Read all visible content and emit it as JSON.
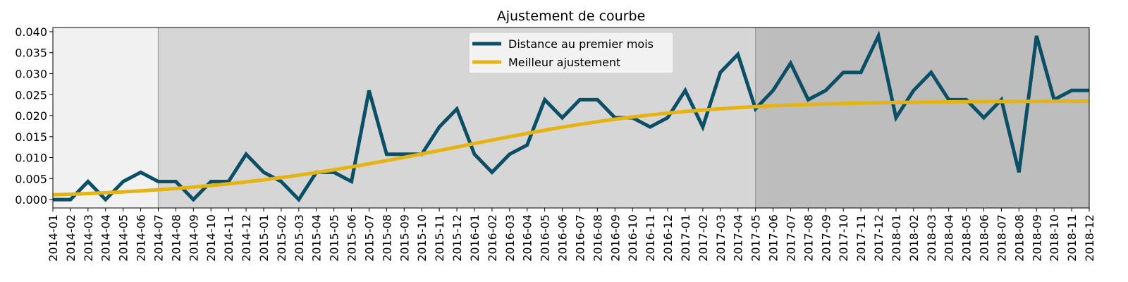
{
  "chart_data": {
    "type": "line",
    "title": "Ajustement de courbe",
    "xlabel": "",
    "ylabel": "",
    "ylim": [
      -0.002,
      0.041
    ],
    "yticks": [
      "0.000",
      "0.005",
      "0.010",
      "0.015",
      "0.020",
      "0.025",
      "0.030",
      "0.035",
      "0.040"
    ],
    "ytick_values": [
      0,
      0.005,
      0.01,
      0.015,
      0.02,
      0.025,
      0.03,
      0.035,
      0.04
    ],
    "categories": [
      "2014-01",
      "2014-02",
      "2014-03",
      "2014-04",
      "2014-05",
      "2014-06",
      "2014-07",
      "2014-08",
      "2014-09",
      "2014-10",
      "2014-11",
      "2014-12",
      "2015-01",
      "2015-02",
      "2015-03",
      "2015-04",
      "2015-05",
      "2015-06",
      "2015-07",
      "2015-08",
      "2015-09",
      "2015-10",
      "2015-11",
      "2015-12",
      "2016-01",
      "2016-02",
      "2016-03",
      "2016-04",
      "2016-05",
      "2016-06",
      "2016-07",
      "2016-08",
      "2016-09",
      "2016-10",
      "2016-11",
      "2016-12",
      "2017-01",
      "2017-02",
      "2017-03",
      "2017-04",
      "2017-05",
      "2017-06",
      "2017-07",
      "2017-08",
      "2017-09",
      "2017-10",
      "2017-11",
      "2017-12",
      "2018-01",
      "2018-02",
      "2018-03",
      "2018-04",
      "2018-05",
      "2018-06",
      "2018-07",
      "2018-08",
      "2018-09",
      "2018-10",
      "2018-11",
      "2018-12"
    ],
    "series": [
      {
        "name": "Distance au premier mois",
        "color": "#0b4f66",
        "values": [
          0.0,
          0.0,
          0.0043,
          0.0,
          0.0043,
          0.0065,
          0.0043,
          0.0043,
          0.0,
          0.0043,
          0.0043,
          0.0108,
          0.0065,
          0.0043,
          0.0,
          0.0065,
          0.0065,
          0.0043,
          0.026,
          0.0108,
          0.0108,
          0.0108,
          0.0173,
          0.0216,
          0.0108,
          0.0065,
          0.0108,
          0.013,
          0.0238,
          0.0195,
          0.0238,
          0.0238,
          0.0195,
          0.0195,
          0.0173,
          0.0195,
          0.026,
          0.0173,
          0.0303,
          0.0346,
          0.0216,
          0.026,
          0.0325,
          0.0238,
          0.026,
          0.0303,
          0.0303,
          0.039,
          0.0195,
          0.026,
          0.0303,
          0.0238,
          0.0238,
          0.0195,
          0.0238,
          0.0065,
          0.039,
          0.0238,
          0.026,
          0.026
        ]
      },
      {
        "name": "Meilleur ajustement",
        "color": "#e6b412",
        "values": [
          0.00114,
          0.00128,
          0.00144,
          0.00163,
          0.00184,
          0.00208,
          0.00235,
          0.00265,
          0.00298,
          0.00335,
          0.00376,
          0.00422,
          0.00471,
          0.00524,
          0.00582,
          0.00644,
          0.00709,
          0.00779,
          0.00852,
          0.00928,
          0.01006,
          0.01087,
          0.01169,
          0.01252,
          0.01335,
          0.01417,
          0.01498,
          0.01576,
          0.01652,
          0.01724,
          0.01792,
          0.01855,
          0.01914,
          0.01967,
          0.02016,
          0.0206,
          0.02099,
          0.02133,
          0.02164,
          0.02191,
          0.02214,
          0.02234,
          0.02251,
          0.02266,
          0.02279,
          0.0229,
          0.02299,
          0.02307,
          0.02314,
          0.0232,
          0.02324,
          0.02328,
          0.02332,
          0.02335,
          0.02337,
          0.02339,
          0.02341,
          0.02342,
          0.02343,
          0.02344
        ]
      }
    ],
    "shaded_regions": [
      {
        "from": "2014-01",
        "to": "2014-07",
        "color": "#f1f1f1"
      },
      {
        "from": "2014-07",
        "to": "2017-05",
        "color": "#d6d6d6"
      },
      {
        "from": "2017-05",
        "to": "2018-12",
        "color": "#bdbdbd"
      }
    ],
    "legend_position": "top-center",
    "grid": false
  }
}
